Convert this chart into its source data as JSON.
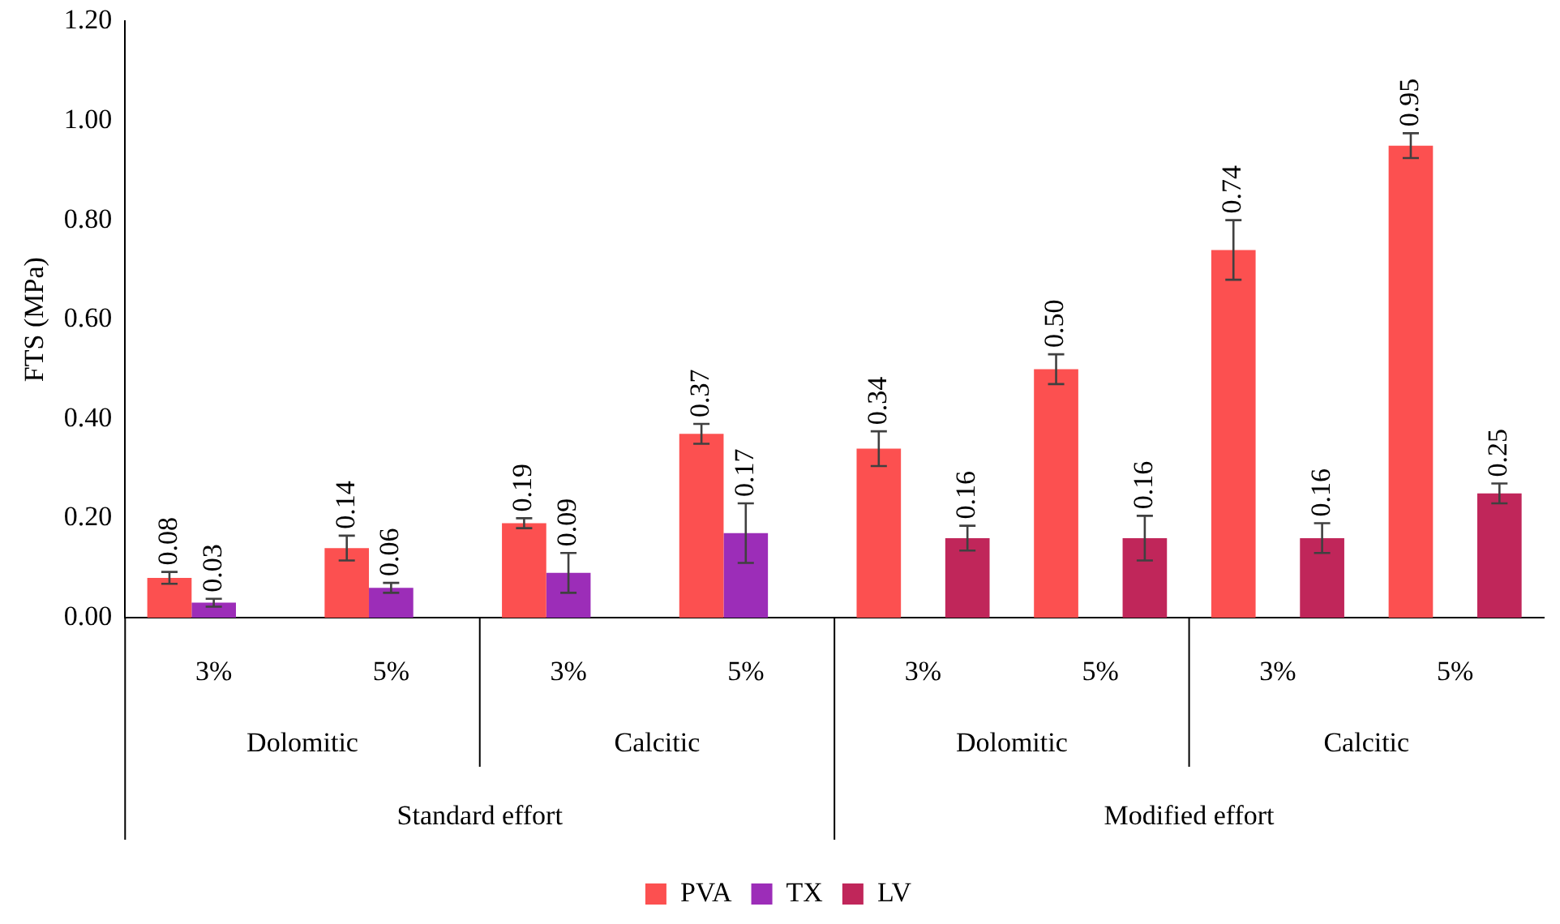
{
  "chart_data": {
    "type": "bar",
    "ylabel": "FTS (MPa)",
    "categories": [
      "3%",
      "5%",
      "3%",
      "5%",
      "3%",
      "5%",
      "3%",
      "5%"
    ],
    "series": [
      {
        "name": "PVA",
        "color": "#fc5050",
        "values": [
          0.08,
          0.14,
          0.19,
          0.37,
          0.34,
          0.5,
          0.74,
          0.95
        ],
        "errors": [
          0.012,
          0.025,
          0.01,
          0.02,
          0.035,
          0.03,
          0.06,
          0.025
        ],
        "value_labels": [
          "0.08",
          "0.14",
          "0.19",
          "0.37",
          "0.34",
          "0.50",
          "0.74",
          "0.95"
        ]
      },
      {
        "name": "TX",
        "color": "#9c2db8",
        "values": [
          0.03,
          0.06,
          0.09,
          0.17,
          null,
          null,
          null,
          null
        ],
        "errors": [
          0.008,
          0.01,
          0.04,
          0.06,
          null,
          null,
          null,
          null
        ],
        "value_labels": [
          "0.03",
          "0.06",
          "0.09",
          "0.17",
          null,
          null,
          null,
          null
        ]
      },
      {
        "name": "LV",
        "color": "#c0265a",
        "values": [
          null,
          null,
          null,
          null,
          0.16,
          0.16,
          0.16,
          0.25
        ],
        "errors": [
          null,
          null,
          null,
          null,
          0.025,
          0.045,
          0.03,
          0.02
        ],
        "value_labels": [
          null,
          null,
          null,
          null,
          "0.16",
          "0.16",
          "0.16",
          "0.25"
        ]
      }
    ],
    "ylim": [
      0,
      1.2
    ],
    "yticks": [
      {
        "value": 0,
        "label": "0.00"
      },
      {
        "value": 0.2,
        "label": "0.20"
      },
      {
        "value": 0.4,
        "label": "0.40"
      },
      {
        "value": 0.6,
        "label": "0.60"
      },
      {
        "value": 0.8,
        "label": "0.80"
      },
      {
        "value": 1,
        "label": "1.00"
      },
      {
        "value": 1.2,
        "label": "1.20"
      }
    ],
    "legend": "bottom",
    "grid": false,
    "annotations": [
      "Dolomitic",
      "Calcitic",
      "Dolomitic",
      "Calcitic",
      "Standard effort",
      "Modified effort"
    ]
  }
}
